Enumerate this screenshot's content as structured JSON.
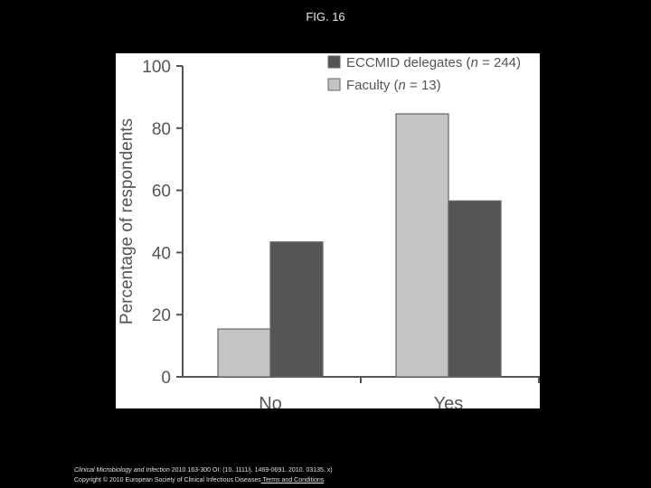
{
  "figure": {
    "title": "FIG. 16"
  },
  "footer": {
    "citation_journal": "Clinical Microbiology and Infection",
    "citation_rest": " 2010 163-300 OI: (10. 1111/j. 1469-0691. 2010. 03135. x)",
    "copyright": "Copyright © 2010 European Society of Clinical Infectious Diseases",
    "terms_link": " Terms and Conditions"
  },
  "chart_data": {
    "type": "bar",
    "categories": [
      "No",
      "Yes"
    ],
    "series": [
      {
        "name": "Faculty (n = 13)",
        "values": [
          15.4,
          84.6
        ],
        "color": "#c4c4c4"
      },
      {
        "name": "ECCMID delegates (n = 244)",
        "values": [
          43.4,
          56.6
        ],
        "color": "#555555"
      }
    ],
    "legend": [
      {
        "name": "ECCMID delegates (n = 244)",
        "color": "#555555"
      },
      {
        "name": "Faculty (n = 13)",
        "color": "#c4c4c4"
      }
    ],
    "ylabel": "Percentage of respondents",
    "xlabel": "",
    "ylim": [
      0,
      100
    ],
    "yticks": [
      0,
      20,
      40,
      60,
      80,
      100
    ],
    "grid": false,
    "legend_position": "top-right"
  }
}
